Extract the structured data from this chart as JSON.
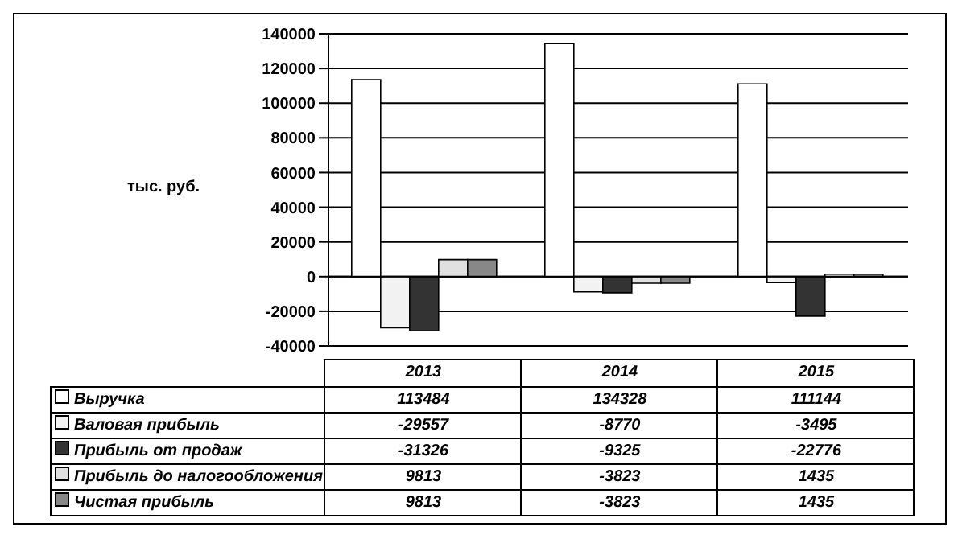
{
  "chart_data": {
    "type": "bar",
    "ylabel": "тыс. руб.",
    "categories": [
      "2013",
      "2014",
      "2015"
    ],
    "series": [
      {
        "name": "Выручка",
        "color": "#ffffff",
        "values": [
          113484,
          134328,
          111144
        ]
      },
      {
        "name": "Валовая прибыль",
        "color": "#f2f2f2",
        "values": [
          -29557,
          -8770,
          -3495
        ]
      },
      {
        "name": "Прибыль от продаж",
        "color": "#333333",
        "values": [
          -31326,
          -9325,
          -22776
        ]
      },
      {
        "name": "Прибыль до налогообложения",
        "color": "#e0e0e0",
        "values": [
          9813,
          -3823,
          1435
        ]
      },
      {
        "name": "Чистая прибыль",
        "color": "#888888",
        "values": [
          9813,
          -3823,
          1435
        ]
      }
    ],
    "ylim": [
      -40000,
      140000
    ],
    "yticks": [
      -40000,
      -20000,
      0,
      20000,
      40000,
      60000,
      80000,
      100000,
      120000,
      140000
    ],
    "grid": "y",
    "legend": "bottom",
    "data_labels": true
  }
}
